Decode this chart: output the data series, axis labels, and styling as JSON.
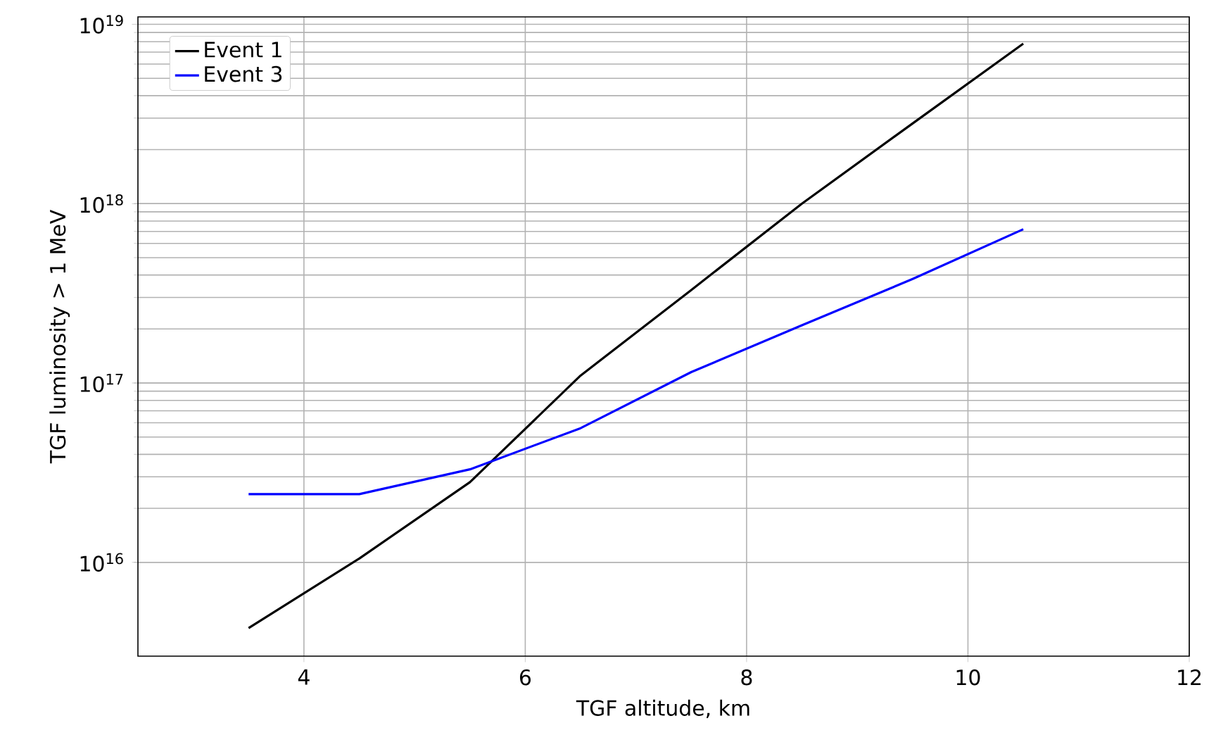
{
  "chart_data": {
    "type": "line",
    "xlabel": "TGF altitude, km",
    "ylabel": "TGF luminosity > 1 MeV",
    "x": [
      3.5,
      4.5,
      5.5,
      6.5,
      7.5,
      8.5,
      9.5,
      10.5
    ],
    "series": [
      {
        "name": "Event 1",
        "color": "#000000",
        "values": [
          4300000000000000.0,
          1.05e+16,
          2.8e+16,
          1.1e+17,
          3.3e+17,
          1e+18,
          2.8e+18,
          7.8e+18
        ]
      },
      {
        "name": "Event 3",
        "color": "#0000ff",
        "values": [
          2.4e+16,
          2.4e+16,
          3.3e+16,
          5.6e+16,
          1.15e+17,
          2.1e+17,
          3.8e+17,
          7.2e+17
        ]
      }
    ],
    "xlim": [
      2.5,
      12
    ],
    "xticks": [
      4,
      6,
      8,
      10,
      12
    ],
    "ylim": [
      3000000000000000.0,
      1.1e+19
    ],
    "yticks": [
      {
        "value": 1e+16,
        "label": "10$^{16}$"
      },
      {
        "value": 1e+17,
        "label": "10$^{17}$"
      },
      {
        "value": 1e+18,
        "label": "10$^{18}$"
      },
      {
        "value": 1e+19,
        "label": "10$^{19}$"
      }
    ],
    "log": "y",
    "grid": true,
    "legend": "top left"
  }
}
